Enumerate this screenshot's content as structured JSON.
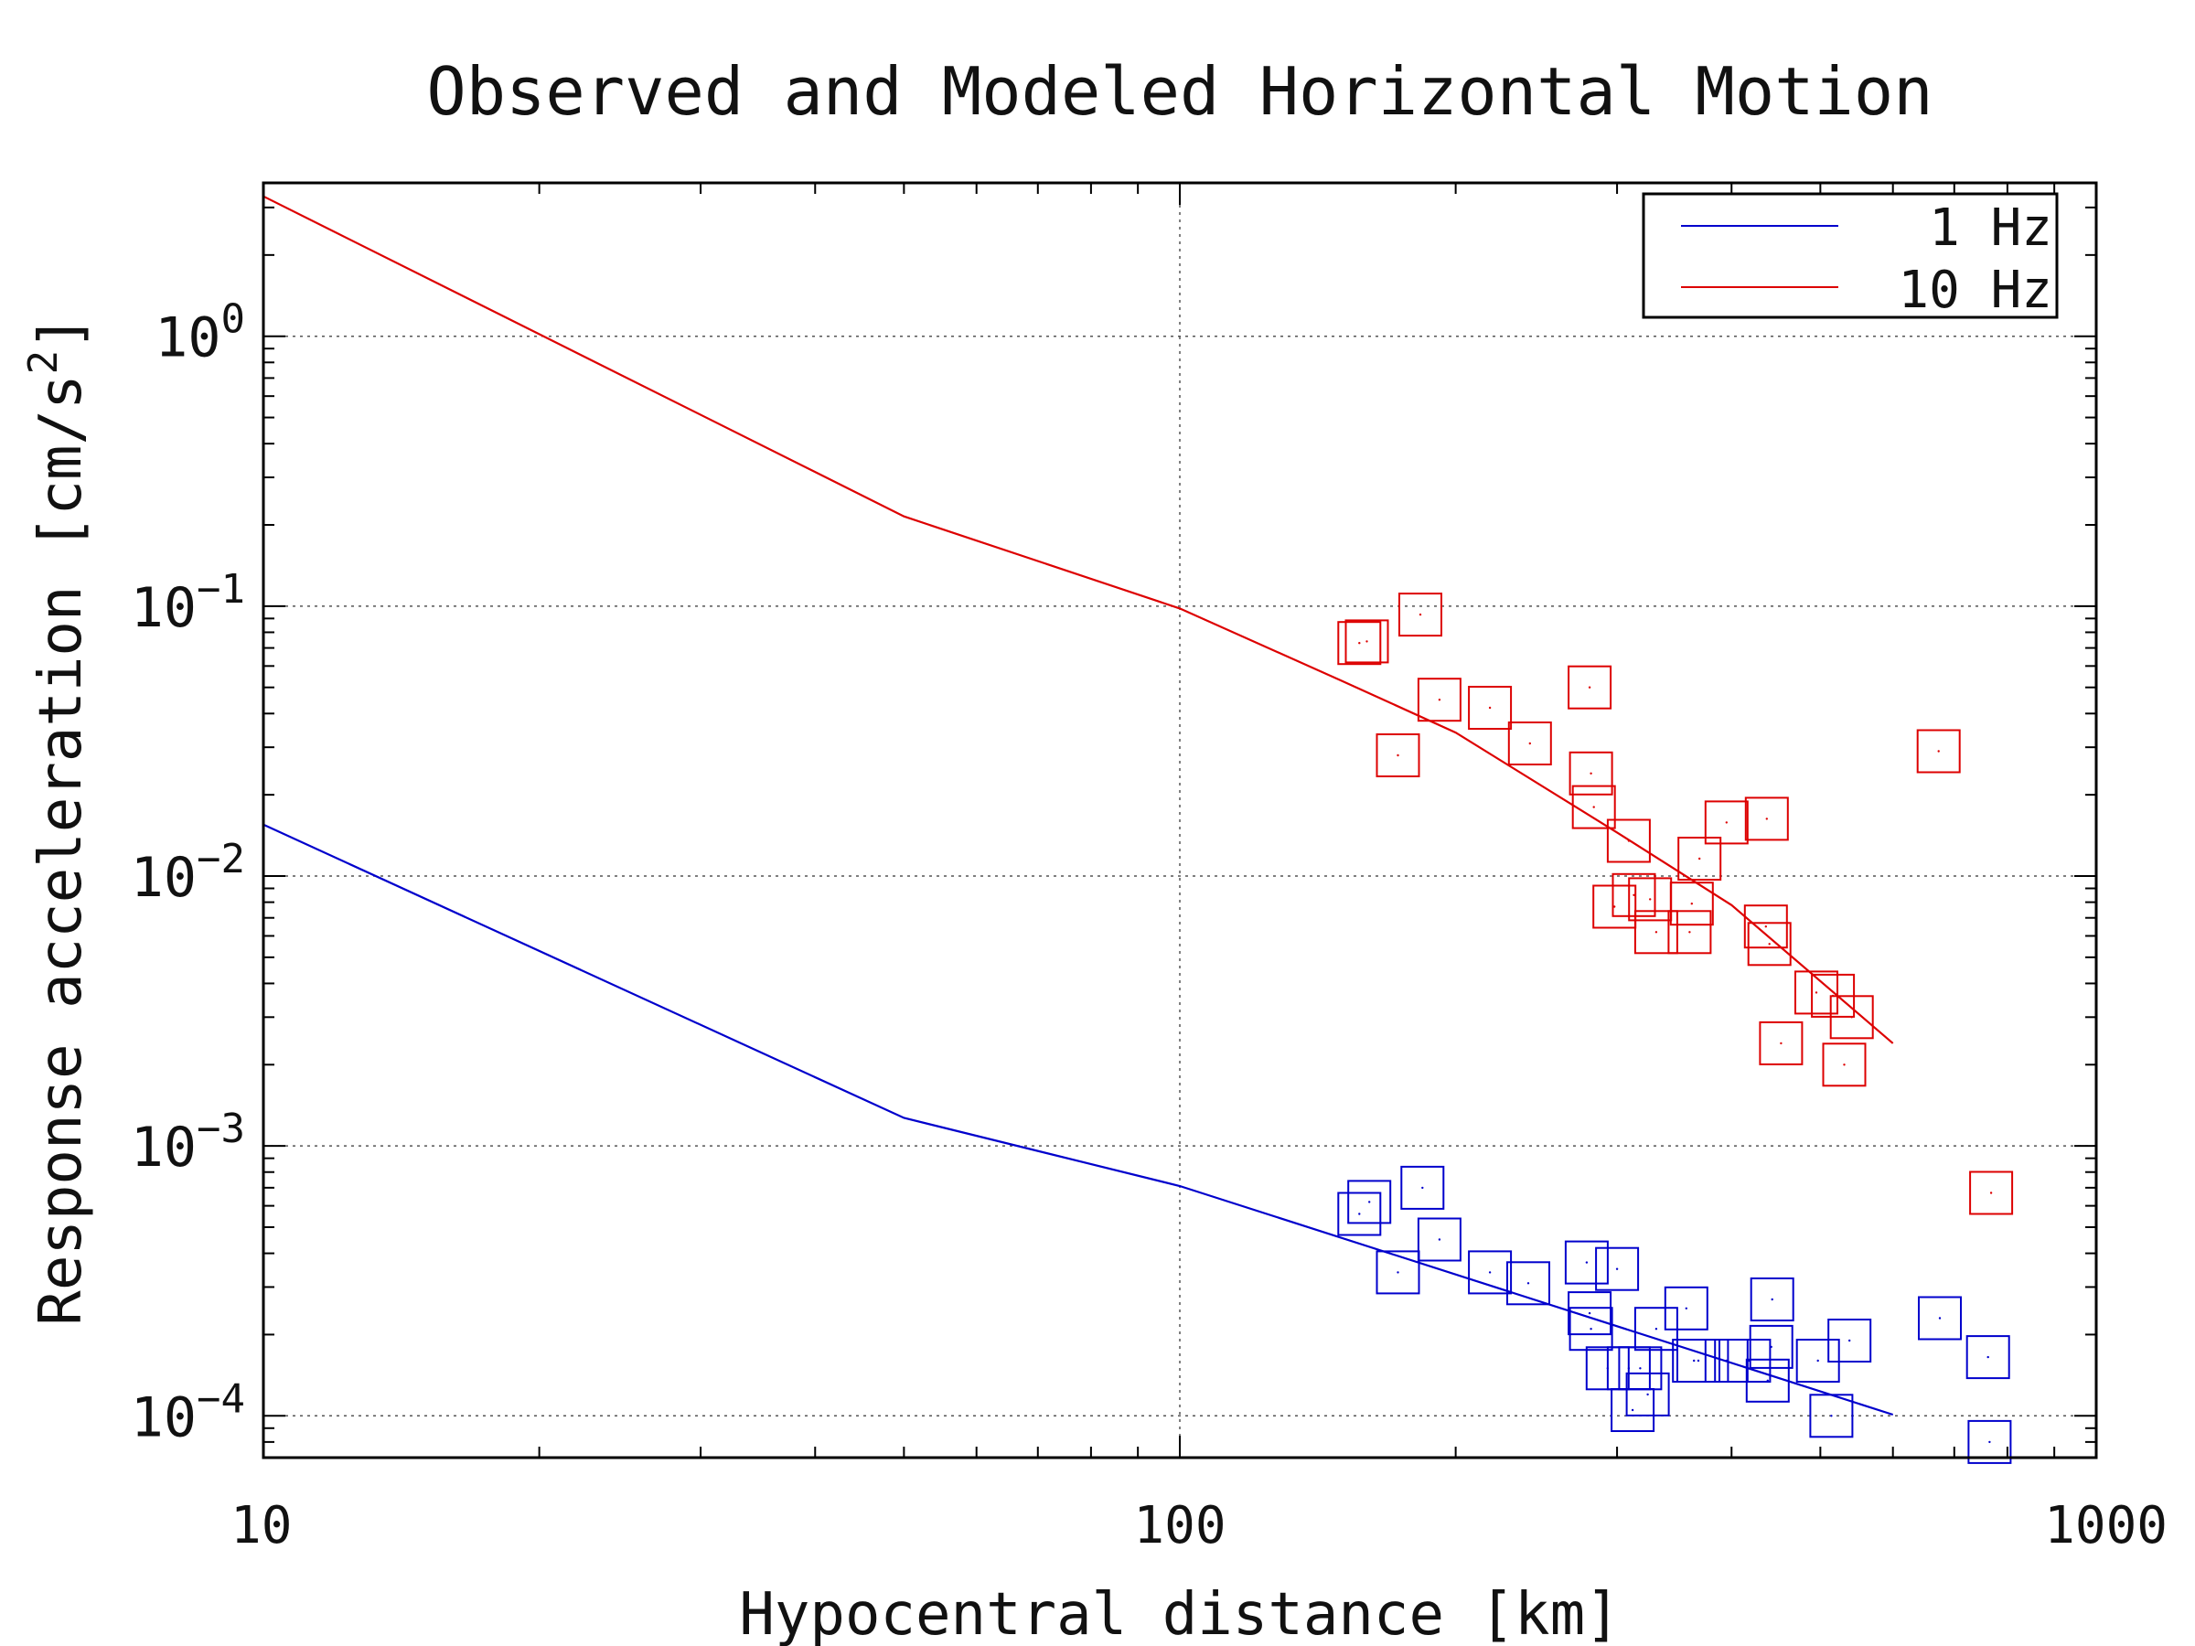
{
  "chart_data": {
    "type": "scatter",
    "title": "Observed and Modeled Horizontal Motion",
    "xlabel": "Hypocentral distance [km]",
    "ylabel": "Response acceleration [cm/s²]",
    "ylabel_main": "Response acceleration [cm/s",
    "ylabel_sup": "2",
    "ylabel_close": "]",
    "x_scale": "log",
    "y_scale": "log",
    "xlim": [
      10,
      1000
    ],
    "ylim": [
      7e-05,
      3.7
    ],
    "x_ticks": [
      {
        "value": 10,
        "label": "10"
      },
      {
        "value": 100,
        "label": "100"
      },
      {
        "value": 1000,
        "label": "1000"
      }
    ],
    "y_ticks": [
      {
        "value": 1,
        "base": "10",
        "exp": "0"
      },
      {
        "value": 0.1,
        "base": "10",
        "exp": "−1"
      },
      {
        "value": 0.01,
        "base": "10",
        "exp": "−2"
      },
      {
        "value": 0.001,
        "base": "10",
        "exp": "−3"
      },
      {
        "value": 0.0001,
        "base": "10",
        "exp": "−4"
      }
    ],
    "grid": true,
    "legend_position": "top-right",
    "series": [
      {
        "name": "1 Hz",
        "color": "#0000cc",
        "model": {
          "x": [
            10,
            50,
            100,
            600
          ],
          "y": [
            0.0155,
            0.00127,
            0.00071,
            0.000101
          ]
        },
        "observed": {
          "x": [
            157,
            161,
            173,
            184,
            192,
            218,
            240,
            278,
            280,
            281,
            293,
            300,
            309,
            312,
            318,
            324,
            331,
            357,
            364,
            368,
            395,
            418,
            438,
            442,
            443,
            497,
            514,
            538,
            675,
            762,
            765
          ],
          "y": [
            0.00056,
            0.00062,
            0.00034,
            0.0007,
            0.00045,
            0.00034,
            0.00031,
            0.00037,
            0.00024,
            0.00021,
            0.00015,
            0.00035,
            0.00015,
            0.000105,
            0.00015,
            0.00012,
            0.00021,
            0.00025,
            0.00016,
            0.00016,
            0.00016,
            0.00016,
            0.000135,
            0.00018,
            0.00027,
            0.00016,
            0.0001,
            0.00019,
            0.00023,
            0.000165,
            8e-05
          ]
        }
      },
      {
        "name": "10 Hz",
        "color": "#dd0000",
        "model": {
          "x": [
            10,
            50,
            100,
            150,
            200,
            300,
            400,
            600
          ],
          "y": [
            3.3,
            0.215,
            0.098,
            0.053,
            0.034,
            0.0145,
            0.0078,
            0.0024
          ]
        },
        "observed": {
          "x": [
            157,
            160,
            173,
            183,
            192,
            218,
            241,
            280,
            281,
            283,
            298,
            309,
            313,
            326,
            331,
            360,
            362,
            369,
            395,
            436,
            437,
            440,
            453,
            495,
            516,
            531,
            541,
            673,
            768
          ],
          "y": [
            0.073,
            0.074,
            0.028,
            0.093,
            0.045,
            0.042,
            0.031,
            0.05,
            0.024,
            0.018,
            0.0077,
            0.0135,
            0.0085,
            0.0082,
            0.0062,
            0.0062,
            0.0079,
            0.0116,
            0.0158,
            0.0065,
            0.0163,
            0.0056,
            0.0024,
            0.0037,
            0.0036,
            0.002,
            0.003,
            0.029,
            0.00067
          ]
        }
      }
    ]
  }
}
